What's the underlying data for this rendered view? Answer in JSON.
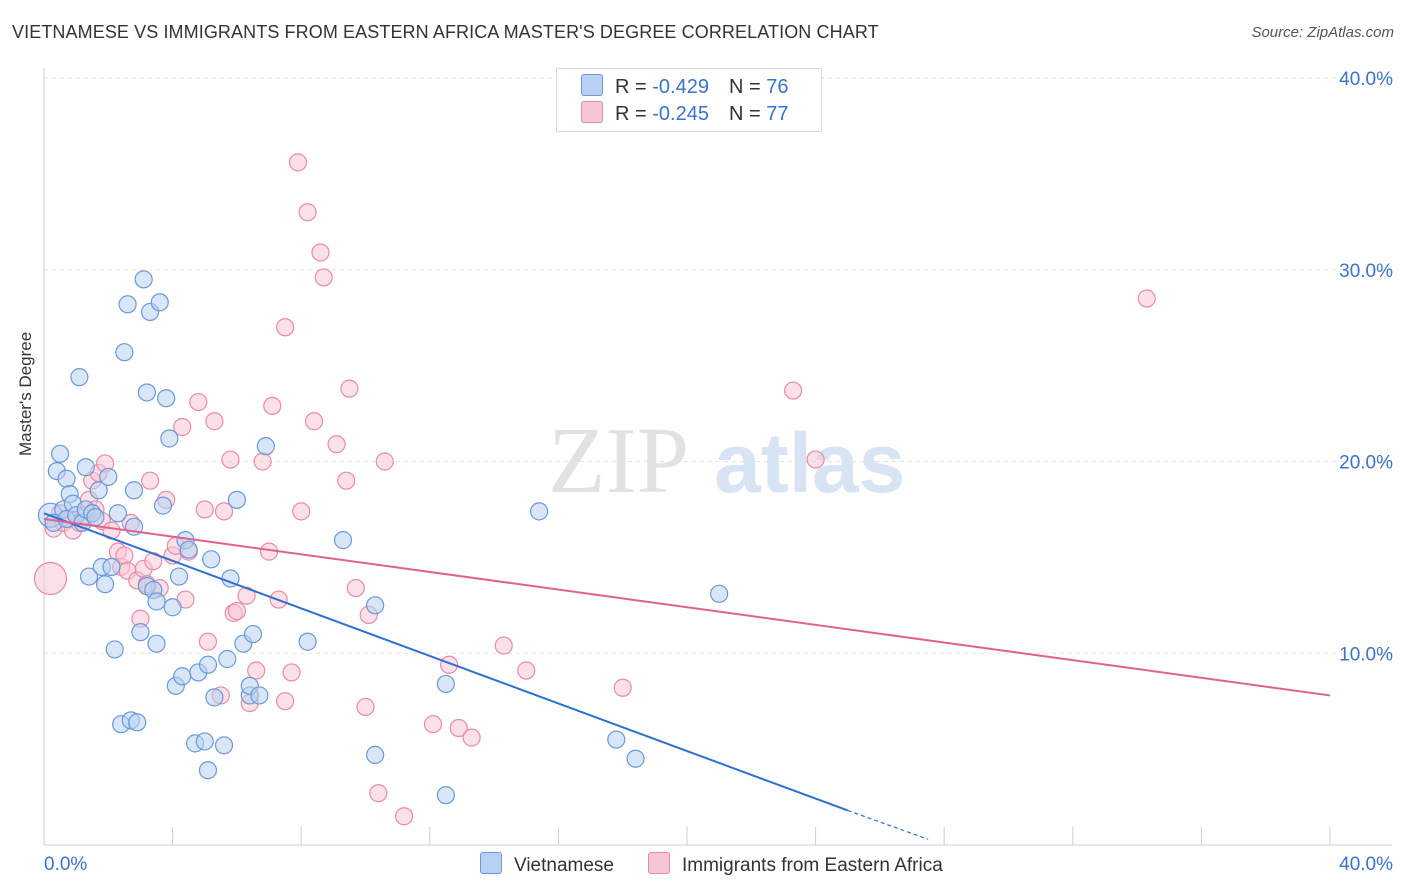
{
  "header": {
    "title": "VIETNAMESE VS IMMIGRANTS FROM EASTERN AFRICA MASTER'S DEGREE CORRELATION CHART",
    "source": "Source: ZipAtlas.com"
  },
  "watermark": {
    "zip": "ZIP",
    "atlas": "atlas"
  },
  "legend": {
    "series1": {
      "r_label": "R = ",
      "r_value": "-0.429",
      "n_label": "N = ",
      "n_value": "76"
    },
    "series2": {
      "r_label": "R = ",
      "r_value": "-0.245",
      "n_label": "N = ",
      "n_value": "77"
    }
  },
  "colors": {
    "blue_fill": "#b8d1f3",
    "blue_stroke": "#6a9ad6",
    "blue_line": "#2e6fd2",
    "pink_fill": "#f7c6d5",
    "pink_stroke": "#e88aa8",
    "pink_line": "#e0618c",
    "tick_label": "#3b73c9"
  },
  "chart_data": {
    "type": "scatter",
    "title": "VIETNAMESE VS IMMIGRANTS FROM EASTERN AFRICA MASTER'S DEGREE CORRELATION CHART",
    "xlabel": "",
    "ylabel": "Master's Degree",
    "xlim": [
      0,
      40
    ],
    "ylim": [
      0,
      40
    ],
    "x_tick_labels": [
      "0.0%",
      "40.0%"
    ],
    "y_ticks": [
      10,
      20,
      30,
      40
    ],
    "y_tick_labels": [
      "10.0%",
      "20.0%",
      "30.0%",
      "40.0%"
    ],
    "grid": true,
    "legend_position": "top-center",
    "series": [
      {
        "name": "Vietnamese",
        "color": "#b8d1f3",
        "R": -0.429,
        "N": 76,
        "trend": {
          "x": [
            0,
            25
          ],
          "y": [
            17.3,
            1.8
          ],
          "dashed_to": [
            27.5,
            0.3
          ]
        },
        "points": [
          [
            0.2,
            17.2
          ],
          [
            0.3,
            16.8
          ],
          [
            0.4,
            19.5
          ],
          [
            0.5,
            20.4
          ],
          [
            0.6,
            17.5
          ],
          [
            0.7,
            19.1
          ],
          [
            0.7,
            17.0
          ],
          [
            0.8,
            18.3
          ],
          [
            0.9,
            17.8
          ],
          [
            1.0,
            17.2
          ],
          [
            1.1,
            24.4
          ],
          [
            1.2,
            16.8
          ],
          [
            1.3,
            17.5
          ],
          [
            1.3,
            19.7
          ],
          [
            1.4,
            14.0
          ],
          [
            1.5,
            17.3
          ],
          [
            1.6,
            17.1
          ],
          [
            1.7,
            18.5
          ],
          [
            1.8,
            14.5
          ],
          [
            1.9,
            13.6
          ],
          [
            2.0,
            19.2
          ],
          [
            2.1,
            14.5
          ],
          [
            2.2,
            10.2
          ],
          [
            2.3,
            17.3
          ],
          [
            2.4,
            6.3
          ],
          [
            2.5,
            25.7
          ],
          [
            2.6,
            28.2
          ],
          [
            2.7,
            6.5
          ],
          [
            2.8,
            16.6
          ],
          [
            2.8,
            18.5
          ],
          [
            2.9,
            6.4
          ],
          [
            3.0,
            11.1
          ],
          [
            3.1,
            29.5
          ],
          [
            3.2,
            23.6
          ],
          [
            3.2,
            13.5
          ],
          [
            3.3,
            27.8
          ],
          [
            3.4,
            13.3
          ],
          [
            3.5,
            10.5
          ],
          [
            3.5,
            12.7
          ],
          [
            3.6,
            28.3
          ],
          [
            3.7,
            17.7
          ],
          [
            3.8,
            23.3
          ],
          [
            3.9,
            21.2
          ],
          [
            4.0,
            12.4
          ],
          [
            4.1,
            8.3
          ],
          [
            4.2,
            14.0
          ],
          [
            4.3,
            8.8
          ],
          [
            4.4,
            15.9
          ],
          [
            4.5,
            15.4
          ],
          [
            4.7,
            5.3
          ],
          [
            4.8,
            9.0
          ],
          [
            5.0,
            5.4
          ],
          [
            5.1,
            3.9
          ],
          [
            5.1,
            9.4
          ],
          [
            5.2,
            14.9
          ],
          [
            5.3,
            7.7
          ],
          [
            5.6,
            5.2
          ],
          [
            5.7,
            9.7
          ],
          [
            5.8,
            13.9
          ],
          [
            6.0,
            18.0
          ],
          [
            6.2,
            10.5
          ],
          [
            6.4,
            7.8
          ],
          [
            6.4,
            8.3
          ],
          [
            6.5,
            11.0
          ],
          [
            6.7,
            7.8
          ],
          [
            6.9,
            20.8
          ],
          [
            8.2,
            10.6
          ],
          [
            9.3,
            15.9
          ],
          [
            10.3,
            12.5
          ],
          [
            10.3,
            4.7
          ],
          [
            12.5,
            8.4
          ],
          [
            12.5,
            2.6
          ],
          [
            15.4,
            17.4
          ],
          [
            17.8,
            5.5
          ],
          [
            18.4,
            4.5
          ],
          [
            21.0,
            13.1
          ]
        ]
      },
      {
        "name": "Immigrants from Eastern Africa",
        "color": "#f7c6d5",
        "R": -0.245,
        "N": 77,
        "trend": {
          "x": [
            0,
            40
          ],
          "y": [
            17.0,
            7.8
          ]
        },
        "points": [
          [
            0.2,
            13.9
          ],
          [
            0.3,
            16.5
          ],
          [
            0.5,
            17.3
          ],
          [
            0.6,
            16.8
          ],
          [
            0.8,
            17.0
          ],
          [
            0.9,
            16.4
          ],
          [
            1.1,
            16.8
          ],
          [
            1.3,
            17.2
          ],
          [
            1.4,
            18.0
          ],
          [
            1.5,
            19.0
          ],
          [
            1.6,
            17.5
          ],
          [
            1.7,
            19.4
          ],
          [
            1.8,
            16.9
          ],
          [
            1.9,
            19.9
          ],
          [
            2.1,
            16.4
          ],
          [
            2.3,
            15.3
          ],
          [
            2.4,
            14.5
          ],
          [
            2.5,
            15.1
          ],
          [
            2.6,
            14.3
          ],
          [
            2.7,
            16.8
          ],
          [
            2.9,
            13.8
          ],
          [
            3.0,
            11.8
          ],
          [
            3.1,
            14.4
          ],
          [
            3.2,
            13.6
          ],
          [
            3.3,
            19.0
          ],
          [
            3.4,
            14.8
          ],
          [
            3.6,
            13.4
          ],
          [
            3.8,
            18.0
          ],
          [
            4.0,
            15.1
          ],
          [
            4.1,
            15.6
          ],
          [
            4.3,
            21.8
          ],
          [
            4.4,
            12.8
          ],
          [
            4.5,
            15.3
          ],
          [
            4.8,
            23.1
          ],
          [
            5.0,
            17.5
          ],
          [
            5.1,
            10.6
          ],
          [
            5.3,
            22.1
          ],
          [
            5.5,
            7.8
          ],
          [
            5.6,
            17.4
          ],
          [
            5.8,
            20.1
          ],
          [
            5.9,
            12.1
          ],
          [
            6.0,
            12.2
          ],
          [
            6.3,
            13.0
          ],
          [
            6.4,
            7.4
          ],
          [
            6.6,
            9.1
          ],
          [
            6.8,
            20.0
          ],
          [
            7.0,
            15.3
          ],
          [
            7.1,
            22.9
          ],
          [
            7.3,
            12.8
          ],
          [
            7.5,
            7.5
          ],
          [
            7.5,
            27.0
          ],
          [
            7.7,
            9.0
          ],
          [
            7.9,
            35.6
          ],
          [
            8.0,
            17.4
          ],
          [
            8.2,
            33.0
          ],
          [
            8.4,
            22.1
          ],
          [
            8.6,
            30.9
          ],
          [
            8.7,
            29.6
          ],
          [
            9.1,
            20.9
          ],
          [
            9.4,
            19.0
          ],
          [
            9.5,
            23.8
          ],
          [
            9.7,
            13.4
          ],
          [
            10.0,
            7.2
          ],
          [
            10.1,
            12.0
          ],
          [
            10.4,
            2.7
          ],
          [
            10.6,
            20.0
          ],
          [
            11.2,
            1.5
          ],
          [
            12.1,
            6.3
          ],
          [
            12.6,
            9.4
          ],
          [
            12.9,
            6.1
          ],
          [
            13.3,
            5.6
          ],
          [
            14.3,
            10.4
          ],
          [
            15.0,
            9.1
          ],
          [
            18.0,
            8.2
          ],
          [
            23.3,
            23.7
          ],
          [
            24.0,
            20.1
          ],
          [
            34.3,
            28.5
          ]
        ]
      }
    ]
  },
  "bottom_legend": {
    "series1": "Vietnamese",
    "series2": "Immigrants from Eastern Africa"
  }
}
